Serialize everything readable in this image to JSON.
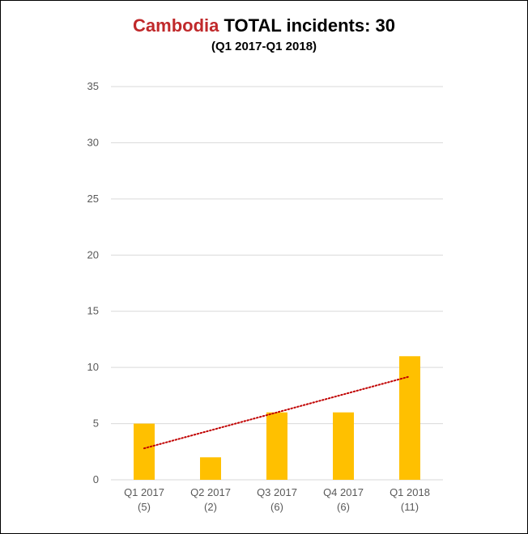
{
  "header": {
    "title_country": "Cambodia",
    "title_rest": "TOTAL incidents: 30",
    "subtitle": "(Q1 2017-Q1 2018)"
  },
  "chart_data": {
    "type": "bar",
    "title": "Cambodia TOTAL incidents: 30",
    "subtitle": "(Q1 2017-Q1 2018)",
    "categories": [
      "Q1 2017",
      "Q2 2017",
      "Q3 2017",
      "Q4 2017",
      "Q1 2018"
    ],
    "category_sublabels": [
      "(5)",
      "(2)",
      "(6)",
      "(6)",
      "(11)"
    ],
    "values": [
      5,
      2,
      6,
      6,
      11
    ],
    "ylim": [
      0,
      35
    ],
    "yticks": [
      0,
      5,
      10,
      15,
      20,
      25,
      30,
      35
    ],
    "grid": true,
    "trendline": {
      "type": "linear",
      "style": "dotted"
    },
    "colors": {
      "bar": "#ffc000",
      "trendline": "#c00000",
      "grid": "#d9d9d9",
      "title_accent": "#c0292b"
    }
  }
}
